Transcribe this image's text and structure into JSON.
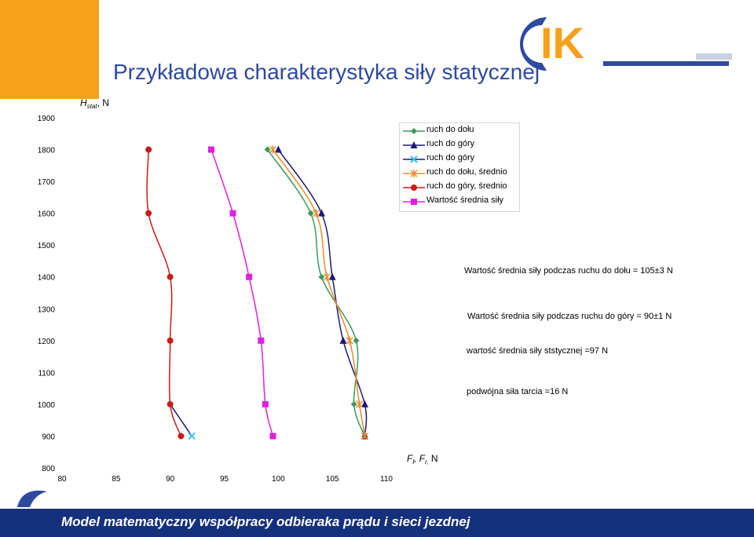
{
  "slide": {
    "title": "Przykładowa charakterystyka siły statycznej",
    "footer": "Model matematyczny współpracy odbieraka prądu i sieci jezdnej",
    "logo_text": "IK"
  },
  "notes": [
    "Wartość średnia siły podczas ruchu do dołu = 105±3 N",
    "Wartość średnia siły podczas ruchu do góry = 90±1 N",
    "wartość średnia siły ststycznej =97 N",
    "podwójna siła tarcia =16 N"
  ],
  "colors": {
    "orange": "#f7a11b",
    "title_blue": "#2e4a9e",
    "footer_blue": "#15307d"
  },
  "chart_data": {
    "type": "line",
    "ylabel_main": "H",
    "ylabel_sub": "stat",
    "ylabel_unit": ", N",
    "xlabel_main": "F",
    "xlabel_sub1": "l",
    "xlabel_sep": ", F",
    "xlabel_sub2": "r,",
    "xlabel_unit": " N",
    "xlim": [
      80,
      110
    ],
    "ylim": [
      800,
      1900
    ],
    "xticks": [
      80,
      85,
      90,
      95,
      100,
      105,
      110
    ],
    "yticks": [
      800,
      900,
      1000,
      1100,
      1200,
      1300,
      1400,
      1500,
      1600,
      1700,
      1800,
      1900
    ],
    "grid": false,
    "legend_position": "top-right",
    "series": [
      {
        "name": "ruch do dołu",
        "color": "#3a9a5a",
        "marker": "diamond",
        "points": [
          [
            108,
            900
          ],
          [
            107,
            1000
          ],
          [
            107.2,
            1200
          ],
          [
            104,
            1400
          ],
          [
            103,
            1600
          ],
          [
            99,
            1800
          ]
        ]
      },
      {
        "name": "ruch do góry",
        "color": "#1a1a7a",
        "marker": "triangle",
        "points": [
          [
            108,
            900
          ],
          [
            108,
            1000
          ],
          [
            106,
            1200
          ],
          [
            105,
            1400
          ],
          [
            104,
            1600
          ],
          [
            100,
            1800
          ]
        ]
      },
      {
        "name": "ruch do góry",
        "color": "#39c0ee",
        "marker": "x",
        "points": [
          [
            92,
            900
          ]
        ]
      },
      {
        "name": "ruch do dołu, średnio",
        "color": "#f08a2a",
        "marker": "star",
        "points": [
          [
            108,
            900
          ],
          [
            107.5,
            1000
          ],
          [
            106.6,
            1200
          ],
          [
            104.5,
            1400
          ],
          [
            103.5,
            1600
          ],
          [
            99.5,
            1800
          ]
        ]
      },
      {
        "name": "ruch do góry, średnio",
        "color": "#cc1a1a",
        "marker": "circle",
        "points": [
          [
            91,
            900
          ],
          [
            90,
            1000
          ],
          [
            90,
            1200
          ],
          [
            90,
            1400
          ],
          [
            88,
            1600
          ],
          [
            88,
            1800
          ]
        ]
      },
      {
        "name": "Wartość średnia siły",
        "color": "#e020e0",
        "marker": "square",
        "points": [
          [
            99.5,
            900
          ],
          [
            98.8,
            1000
          ],
          [
            98.4,
            1200
          ],
          [
            97.3,
            1400
          ],
          [
            95.8,
            1600
          ],
          [
            93.8,
            1800
          ]
        ]
      }
    ]
  }
}
